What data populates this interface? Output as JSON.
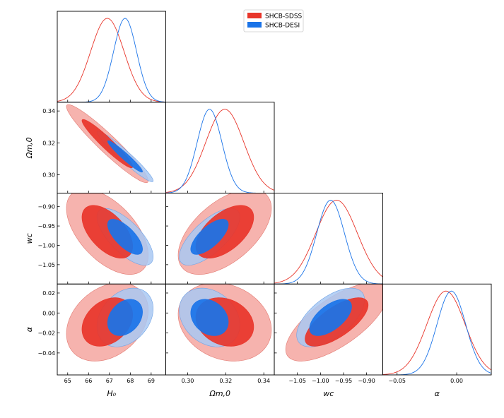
{
  "chart_data": {
    "type": "corner",
    "series": [
      {
        "name": "SHCB-SDSS",
        "color": "#e8352a",
        "mean": {
          "H0": 66.9,
          "Om": 0.3195,
          "wc": -0.965,
          "alpha": -0.009
        },
        "sigma": {
          "H0": 0.8,
          "Om": 0.01,
          "wc": 0.045,
          "alpha": 0.016
        },
        "corr": {
          "H0-Om": -0.95,
          "H0-wc": -0.55,
          "Om-wc": 0.55,
          "H0-alpha": 0.3,
          "Om-alpha": -0.2,
          "wc-alpha": 0.7
        }
      },
      {
        "name": "SHCB-DESI",
        "color": "#1a73e8",
        "mean": {
          "H0": 67.75,
          "Om": 0.3115,
          "wc": -0.978,
          "alpha": -0.0045
        },
        "sigma": {
          "H0": 0.55,
          "Om": 0.0065,
          "wc": 0.03,
          "alpha": 0.012
        },
        "corr": {
          "H0-Om": -0.96,
          "H0-wc": -0.7,
          "Om-wc": 0.7,
          "H0-alpha": 0.3,
          "Om-alpha": -0.25,
          "wc-alpha": 0.6
        }
      }
    ],
    "params": [
      {
        "key": "H0",
        "label": "H₀",
        "range": [
          64.5,
          69.7
        ],
        "ticks": [
          65,
          66,
          67,
          68,
          69
        ],
        "tick_labels": [
          "65",
          "66",
          "67",
          "68",
          "69"
        ]
      },
      {
        "key": "Om",
        "label": "Ωm,0",
        "range": [
          0.2885,
          0.3455
        ],
        "ticks": [
          0.3,
          0.32,
          0.34
        ],
        "tick_labels": [
          "0.30",
          "0.32",
          "0.34"
        ]
      },
      {
        "key": "wc",
        "label": "wc",
        "range": [
          -1.1,
          -0.865
        ],
        "ticks": [
          -1.05,
          -1.0,
          -0.95,
          -0.9
        ],
        "tick_labels": [
          "−1.05",
          "−1.00",
          "−0.95",
          "−0.90"
        ]
      },
      {
        "key": "alpha",
        "label": "α",
        "range": [
          -0.062,
          0.029
        ],
        "ticks": [
          -0.04,
          -0.02,
          0.0,
          0.02
        ],
        "tick_labels": [
          "−0.04",
          "−0.02",
          "0.00",
          "0.02"
        ],
        "x_ticks": [
          -0.05,
          0.0
        ],
        "x_tick_labels": [
          "−0.05",
          "0.00"
        ]
      }
    ],
    "legend": {
      "placement": "top-center",
      "entries": [
        "SHCB-SDSS",
        "SHCB-DESI"
      ]
    },
    "contour_levels": [
      "68%",
      "95%"
    ],
    "grid": false
  }
}
